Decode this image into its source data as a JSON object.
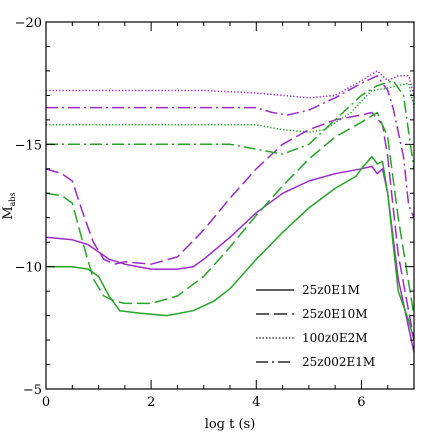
{
  "chart_data": {
    "type": "line",
    "xlabel": "log t (s)",
    "ylabel": "M",
    "ylabel_sub": "abs",
    "xlim": [
      0,
      7
    ],
    "ylim": [
      -5,
      -20
    ],
    "xticks": [
      0,
      2,
      4,
      6
    ],
    "yticks": [
      -5,
      -10,
      -15,
      -20
    ],
    "colors": {
      "purple": "#9a2cc9",
      "green": "#27a527"
    },
    "legend": [
      {
        "label": "25z0E1M",
        "dash": "solid"
      },
      {
        "label": "25z0E10M",
        "dash": "long-dash"
      },
      {
        "label": "100z0E2M",
        "dash": "dotted"
      },
      {
        "label": "25z002E1M",
        "dash": "dash-dot"
      }
    ],
    "series": [
      {
        "label": "25z0E1M",
        "color": "purple",
        "dash": "solid",
        "points": [
          [
            0,
            -11.2
          ],
          [
            0.5,
            -11.1
          ],
          [
            0.8,
            -10.9
          ],
          [
            1.0,
            -10.6
          ],
          [
            1.2,
            -10.3
          ],
          [
            1.5,
            -10.1
          ],
          [
            2.0,
            -9.9
          ],
          [
            2.5,
            -9.9
          ],
          [
            2.8,
            -10.0
          ],
          [
            3.0,
            -10.3
          ],
          [
            3.5,
            -11.2
          ],
          [
            4.0,
            -12.2
          ],
          [
            4.5,
            -13.0
          ],
          [
            5.0,
            -13.5
          ],
          [
            5.5,
            -13.8
          ],
          [
            6.0,
            -14.0
          ],
          [
            6.2,
            -14.1
          ],
          [
            6.3,
            -13.8
          ],
          [
            6.4,
            -14.0
          ],
          [
            6.5,
            -13.0
          ],
          [
            6.7,
            -9.5
          ],
          [
            6.9,
            -7.5
          ],
          [
            7.0,
            -6.5
          ]
        ]
      },
      {
        "label": "25z0E1M",
        "color": "green",
        "dash": "solid",
        "points": [
          [
            0,
            -10.0
          ],
          [
            0.5,
            -10.0
          ],
          [
            0.8,
            -9.9
          ],
          [
            1.0,
            -9.6
          ],
          [
            1.2,
            -8.8
          ],
          [
            1.4,
            -8.2
          ],
          [
            1.8,
            -8.1
          ],
          [
            2.3,
            -8.0
          ],
          [
            2.8,
            -8.2
          ],
          [
            3.2,
            -8.6
          ],
          [
            3.5,
            -9.1
          ],
          [
            4.0,
            -10.3
          ],
          [
            4.5,
            -11.4
          ],
          [
            5.0,
            -12.4
          ],
          [
            5.5,
            -13.2
          ],
          [
            5.9,
            -13.7
          ],
          [
            6.0,
            -14.0
          ],
          [
            6.2,
            -14.5
          ],
          [
            6.3,
            -14.2
          ],
          [
            6.4,
            -14.3
          ],
          [
            6.5,
            -13.0
          ],
          [
            6.7,
            -9.0
          ],
          [
            6.9,
            -7.8
          ],
          [
            7.0,
            -7.0
          ]
        ]
      },
      {
        "label": "25z0E10M",
        "color": "purple",
        "dash": "long-dash",
        "points": [
          [
            0,
            -14.0
          ],
          [
            0.3,
            -13.8
          ],
          [
            0.5,
            -13.5
          ],
          [
            0.7,
            -12.2
          ],
          [
            0.9,
            -11.0
          ],
          [
            1.1,
            -10.3
          ],
          [
            1.3,
            -10.1
          ],
          [
            1.5,
            -10.2
          ],
          [
            2.0,
            -10.1
          ],
          [
            2.5,
            -10.4
          ],
          [
            3.0,
            -11.5
          ],
          [
            3.5,
            -12.8
          ],
          [
            4.0,
            -14.0
          ],
          [
            4.5,
            -15.0
          ],
          [
            5.0,
            -15.6
          ],
          [
            5.5,
            -16.0
          ],
          [
            6.0,
            -16.2
          ],
          [
            6.2,
            -16.3
          ],
          [
            6.4,
            -15.8
          ],
          [
            6.5,
            -14.5
          ],
          [
            6.7,
            -10.5
          ],
          [
            7.0,
            -7.0
          ]
        ]
      },
      {
        "label": "25z0E10M",
        "color": "green",
        "dash": "long-dash",
        "points": [
          [
            0,
            -13.0
          ],
          [
            0.3,
            -12.9
          ],
          [
            0.5,
            -12.6
          ],
          [
            0.7,
            -11.0
          ],
          [
            0.9,
            -9.5
          ],
          [
            1.1,
            -8.8
          ],
          [
            1.3,
            -8.6
          ],
          [
            1.5,
            -8.5
          ],
          [
            2.0,
            -8.5
          ],
          [
            2.5,
            -8.8
          ],
          [
            3.0,
            -9.6
          ],
          [
            3.5,
            -10.8
          ],
          [
            4.0,
            -12.1
          ],
          [
            4.5,
            -13.3
          ],
          [
            5.0,
            -14.4
          ],
          [
            5.5,
            -15.3
          ],
          [
            6.0,
            -15.9
          ],
          [
            6.3,
            -16.3
          ],
          [
            6.5,
            -15.3
          ],
          [
            6.7,
            -12.0
          ],
          [
            7.0,
            -8.0
          ]
        ]
      },
      {
        "label": "100z0E2M",
        "color": "purple",
        "dash": "dotted",
        "points": [
          [
            0,
            -17.2
          ],
          [
            1.0,
            -17.2
          ],
          [
            2.0,
            -17.2
          ],
          [
            3.0,
            -17.2
          ],
          [
            4.0,
            -17.1
          ],
          [
            4.5,
            -17.0
          ],
          [
            5.0,
            -16.9
          ],
          [
            5.5,
            -17.0
          ],
          [
            6.0,
            -17.6
          ],
          [
            6.3,
            -18.0
          ],
          [
            6.5,
            -17.6
          ],
          [
            6.7,
            -17.8
          ],
          [
            6.9,
            -17.8
          ],
          [
            7.0,
            -17.0
          ]
        ]
      },
      {
        "label": "100z0E2M",
        "color": "green",
        "dash": "dotted",
        "points": [
          [
            0,
            -15.8
          ],
          [
            1.0,
            -15.8
          ],
          [
            2.0,
            -15.8
          ],
          [
            3.0,
            -15.8
          ],
          [
            4.0,
            -15.8
          ],
          [
            4.5,
            -15.6
          ],
          [
            5.0,
            -15.5
          ],
          [
            5.3,
            -15.6
          ],
          [
            5.8,
            -16.3
          ],
          [
            6.2,
            -17.2
          ],
          [
            6.5,
            -17.3
          ],
          [
            6.7,
            -17.4
          ],
          [
            6.9,
            -17.5
          ],
          [
            7.0,
            -16.5
          ]
        ]
      },
      {
        "label": "25z002E1M",
        "color": "purple",
        "dash": "dash-dot",
        "points": [
          [
            0,
            -16.5
          ],
          [
            1.0,
            -16.5
          ],
          [
            2.0,
            -16.5
          ],
          [
            3.0,
            -16.5
          ],
          [
            4.0,
            -16.5
          ],
          [
            4.3,
            -16.3
          ],
          [
            4.6,
            -16.2
          ],
          [
            5.0,
            -16.4
          ],
          [
            5.5,
            -16.9
          ],
          [
            6.0,
            -17.5
          ],
          [
            6.3,
            -17.8
          ],
          [
            6.5,
            -17.2
          ],
          [
            6.6,
            -16.5
          ],
          [
            6.8,
            -14.5
          ],
          [
            6.9,
            -12.5
          ],
          [
            7.0,
            -12.0
          ]
        ]
      },
      {
        "label": "25z002E1M",
        "color": "green",
        "dash": "dash-dot",
        "points": [
          [
            0,
            -15.0
          ],
          [
            1.0,
            -15.0
          ],
          [
            2.0,
            -15.0
          ],
          [
            3.0,
            -15.0
          ],
          [
            3.5,
            -15.0
          ],
          [
            4.0,
            -14.8
          ],
          [
            4.5,
            -14.6
          ],
          [
            5.0,
            -15.0
          ],
          [
            5.5,
            -16.0
          ],
          [
            6.0,
            -17.0
          ],
          [
            6.3,
            -17.4
          ],
          [
            6.6,
            -17.6
          ],
          [
            6.8,
            -17.0
          ],
          [
            6.9,
            -15.5
          ],
          [
            7.0,
            -14.0
          ]
        ]
      }
    ]
  }
}
